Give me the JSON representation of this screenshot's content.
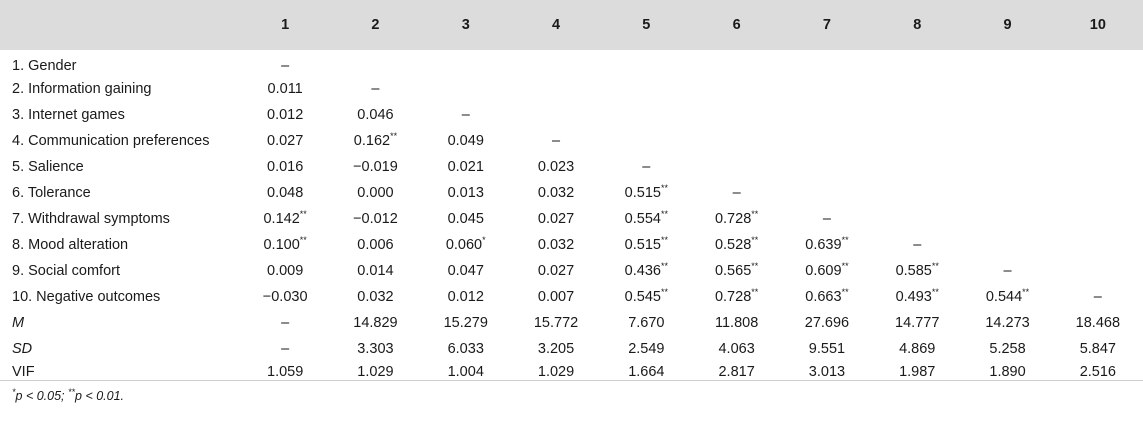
{
  "table": {
    "columns": [
      "",
      "1",
      "2",
      "3",
      "4",
      "5",
      "6",
      "7",
      "8",
      "9",
      "10"
    ],
    "rows": [
      {
        "label": "1. Gender",
        "cells": [
          "–",
          "",
          "",
          "",
          "",
          "",
          "",
          "",
          "",
          ""
        ]
      },
      {
        "label": "2. Information gaining",
        "cells": [
          "0.011",
          "–",
          "",
          "",
          "",
          "",
          "",
          "",
          "",
          ""
        ]
      },
      {
        "label": "3. Internet games",
        "cells": [
          "0.012",
          "0.046",
          "–",
          "",
          "",
          "",
          "",
          "",
          "",
          ""
        ]
      },
      {
        "label": "4. Communication preferences",
        "cells": [
          "0.027",
          "0.162**",
          "0.049",
          "–",
          "",
          "",
          "",
          "",
          "",
          ""
        ]
      },
      {
        "label": "5. Salience",
        "cells": [
          "0.016",
          "−0.019",
          "0.021",
          "0.023",
          "–",
          "",
          "",
          "",
          "",
          ""
        ]
      },
      {
        "label": "6. Tolerance",
        "cells": [
          "0.048",
          "0.000",
          "0.013",
          "0.032",
          "0.515**",
          "–",
          "",
          "",
          "",
          ""
        ]
      },
      {
        "label": "7. Withdrawal symptoms",
        "cells": [
          "0.142**",
          "−0.012",
          "0.045",
          "0.027",
          "0.554**",
          "0.728**",
          "–",
          "",
          "",
          ""
        ]
      },
      {
        "label": "8. Mood alteration",
        "cells": [
          "0.100**",
          "0.006",
          "0.060*",
          "0.032",
          "0.515**",
          "0.528**",
          "0.639**",
          "–",
          "",
          ""
        ]
      },
      {
        "label": "9. Social comfort",
        "cells": [
          "0.009",
          "0.014",
          "0.047",
          "0.027",
          "0.436**",
          "0.565**",
          "0.609**",
          "0.585**",
          "–",
          ""
        ]
      },
      {
        "label": "10. Negative outcomes",
        "cells": [
          "−0.030",
          "0.032",
          "0.012",
          "0.007",
          "0.545**",
          "0.728**",
          "0.663**",
          "0.493**",
          "0.544**",
          "–"
        ]
      },
      {
        "label": "M",
        "italic": true,
        "cells": [
          "–",
          "14.829",
          "15.279",
          "15.772",
          "7.670",
          "11.808",
          "27.696",
          "14.777",
          "14.273",
          "18.468"
        ]
      },
      {
        "label": "SD",
        "italic": true,
        "cells": [
          "–",
          "3.303",
          "6.033",
          "3.205",
          "2.549",
          "4.063",
          "9.551",
          "4.869",
          "5.258",
          "5.847"
        ]
      },
      {
        "label": "VIF",
        "italic": false,
        "cells": [
          "1.059",
          "1.029",
          "1.004",
          "1.029",
          "1.664",
          "2.817",
          "3.013",
          "1.987",
          "1.890",
          "2.516"
        ]
      }
    ]
  },
  "footnote": "*p < 0.05; **p < 0.01."
}
